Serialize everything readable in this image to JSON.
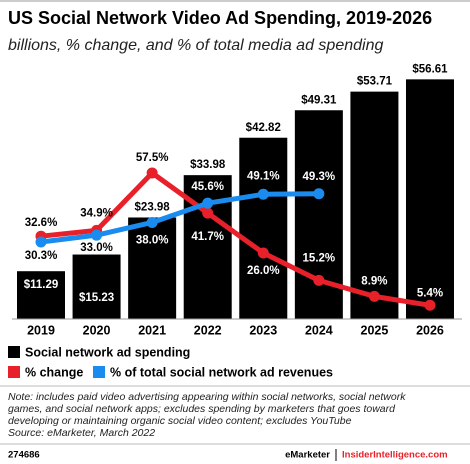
{
  "chart_data": {
    "type": "bar-line",
    "title": "US Social Network Video Ad Spending, 2019-2026",
    "subtitle": "billions, % change, and % of total media ad spending",
    "categories": [
      "2019",
      "2020",
      "2021",
      "2022",
      "2023",
      "2024",
      "2025",
      "2026"
    ],
    "ylim": [
      0,
      60
    ],
    "y2lim": [
      0,
      100
    ],
    "series": [
      {
        "name": "Social network ad spending",
        "color": "#000000",
        "values": [
          11.29,
          15.23,
          23.98,
          33.98,
          42.82,
          49.31,
          53.71,
          56.61
        ],
        "value_labels": [
          "$11.29",
          "$15.23",
          "$23.98",
          "$33.98",
          "$42.82",
          "$49.31",
          "$53.71",
          "$56.61"
        ]
      },
      {
        "name": "% change",
        "color": "#e8202a",
        "axis": "y2",
        "values": [
          32.6,
          34.9,
          57.5,
          41.7,
          26.0,
          15.2,
          8.9,
          5.4
        ],
        "value_labels": [
          "32.6%",
          "34.9%",
          "57.5%",
          "41.7%",
          "26.0%",
          "15.2%",
          "8.9%",
          "5.4%"
        ]
      },
      {
        "name": "% of total social network ad revenues",
        "color": "#1a8cf0",
        "axis": "y2",
        "values": [
          30.3,
          33.0,
          38.0,
          45.6,
          49.1,
          49.3,
          null,
          null
        ],
        "value_labels": [
          "30.3%",
          "33.0%",
          "38.0%",
          "45.6%",
          "49.1%",
          "49.3%",
          null,
          null
        ]
      }
    ],
    "note": [
      "Note: includes paid video advertising appearing within social networks, social network",
      "games, and social network apps; excludes spending by marketers that goes toward",
      "developing or maintaining organic social video content; excludes YouTube"
    ],
    "source": "Source: eMarketer, March 2022",
    "footer_id": "274686",
    "footer_brand": "eMarketer",
    "footer_site": "InsiderIntelligence.com"
  }
}
